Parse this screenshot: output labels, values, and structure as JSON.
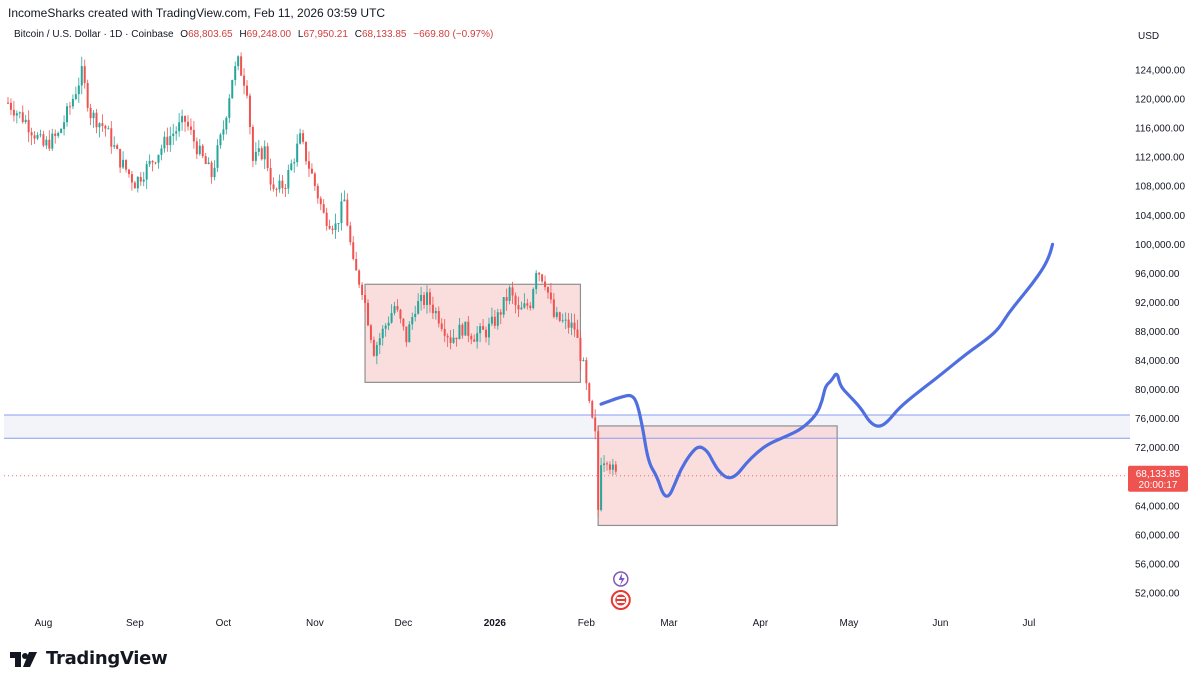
{
  "header": {
    "credit": "IncomeSharks created with TradingView.com, Feb 11, 2026 03:59 UTC",
    "symbol": "Bitcoin / U.S. Dollar · 1D · Coinbase",
    "o_label": "O",
    "o_value": "68,803.65",
    "h_label": "H",
    "h_value": "69,248.00",
    "l_label": "L",
    "l_value": "67,950.21",
    "c_label": "C",
    "c_value": "68,133.85",
    "change": "−669.80 (−0.97%)",
    "currency": "USD"
  },
  "brand": {
    "name": "TradingView"
  },
  "price_badge": {
    "price": "68,133.85",
    "countdown": "20:00:17"
  },
  "colors": {
    "up": "#26a69a",
    "down": "#ef5350",
    "projection": "#4f6fe0",
    "range_fill": "#f8d3d3",
    "range_stroke": "#8f8f8f",
    "hline": "#8a9cf0",
    "band_fill": "#f3f4fa",
    "badge": "#ef5350"
  },
  "chart_data": {
    "type": "candlestick",
    "title": "Bitcoin / U.S. Dollar · 1D · Coinbase",
    "ylabel": "USD",
    "ylim": [
      48000,
      128000
    ],
    "y_ticks": [
      "124,000.00",
      "120,000.00",
      "116,000.00",
      "112,000.00",
      "108,000.00",
      "104,000.00",
      "100,000.00",
      "96,000.00",
      "92,000.00",
      "88,000.00",
      "84,000.00",
      "80,000.00",
      "76,000.00",
      "72,000.00",
      "64,000.00",
      "60,000.00",
      "56,000.00",
      "52,000.00"
    ],
    "y_tick_values": [
      124000,
      120000,
      116000,
      112000,
      108000,
      104000,
      100000,
      96000,
      92000,
      88000,
      84000,
      80000,
      76000,
      72000,
      64000,
      60000,
      56000,
      52000
    ],
    "x_ticks": [
      "Aug",
      "Sep",
      "Oct",
      "Nov",
      "Dec",
      "2026",
      "Feb",
      "Mar",
      "Apr",
      "May",
      "Jun",
      "Jul"
    ],
    "x_tick_dates": [
      "2025-08-01",
      "2025-09-01",
      "2025-10-01",
      "2025-11-01",
      "2025-12-01",
      "2026-01-01",
      "2026-02-01",
      "2026-03-01",
      "2026-04-01",
      "2026-05-01",
      "2026-06-01",
      "2026-07-01"
    ],
    "price_path": [
      [
        "2025-07-20",
        119500
      ],
      [
        "2025-07-26",
        117000
      ],
      [
        "2025-08-01",
        113500
      ],
      [
        "2025-08-06",
        115000
      ],
      [
        "2025-08-10",
        119000
      ],
      [
        "2025-08-14",
        123500
      ],
      [
        "2025-08-17",
        118000
      ],
      [
        "2025-08-22",
        116000
      ],
      [
        "2025-08-27",
        111500
      ],
      [
        "2025-09-01",
        108500
      ],
      [
        "2025-09-06",
        111000
      ],
      [
        "2025-09-12",
        114500
      ],
      [
        "2025-09-18",
        117000
      ],
      [
        "2025-09-23",
        112500
      ],
      [
        "2025-09-27",
        109500
      ],
      [
        "2025-10-01",
        116000
      ],
      [
        "2025-10-04",
        123000
      ],
      [
        "2025-10-06",
        125000
      ],
      [
        "2025-10-09",
        121500
      ],
      [
        "2025-10-11",
        111500
      ],
      [
        "2025-10-15",
        113000
      ],
      [
        "2025-10-18",
        107000
      ],
      [
        "2025-10-22",
        108500
      ],
      [
        "2025-10-27",
        114500
      ],
      [
        "2025-10-31",
        109500
      ],
      [
        "2025-11-04",
        104000
      ],
      [
        "2025-11-08",
        102500
      ],
      [
        "2025-11-11",
        106000
      ],
      [
        "2025-11-14",
        97000
      ],
      [
        "2025-11-17",
        94000
      ],
      [
        "2025-11-21",
        85500
      ],
      [
        "2025-11-24",
        88000
      ],
      [
        "2025-11-28",
        91500
      ],
      [
        "2025-12-02",
        87000
      ],
      [
        "2025-12-05",
        91500
      ],
      [
        "2025-12-09",
        92500
      ],
      [
        "2025-12-13",
        90000
      ],
      [
        "2025-12-17",
        87000
      ],
      [
        "2025-12-21",
        88500
      ],
      [
        "2025-12-25",
        87500
      ],
      [
        "2025-12-29",
        88000
      ],
      [
        "2026-01-02",
        90000
      ],
      [
        "2026-01-06",
        93500
      ],
      [
        "2026-01-09",
        90500
      ],
      [
        "2026-01-13",
        92000
      ],
      [
        "2026-01-15",
        96800
      ],
      [
        "2026-01-18",
        95000
      ],
      [
        "2026-01-21",
        90000
      ],
      [
        "2026-01-25",
        89000
      ],
      [
        "2026-01-28",
        88500
      ],
      [
        "2026-01-31",
        83000
      ],
      [
        "2026-02-02",
        77500
      ],
      [
        "2026-02-04",
        73500
      ],
      [
        "2026-02-05",
        63500
      ],
      [
        "2026-02-06",
        70500
      ],
      [
        "2026-02-08",
        70800
      ],
      [
        "2026-02-10",
        68800
      ],
      [
        "2026-02-11",
        68134
      ]
    ],
    "zones": [
      {
        "x0": "2025-11-18",
        "x1": "2026-01-30",
        "y0": 81000,
        "y1": 94500
      },
      {
        "x0": "2026-02-05",
        "x1": "2026-04-27",
        "y0": 61300,
        "y1": 75000
      }
    ],
    "horizontal_lines": [
      76500,
      73300
    ],
    "projection_path": [
      [
        "2026-02-06",
        78000
      ],
      [
        "2026-02-10",
        78600
      ],
      [
        "2026-02-13",
        79000
      ],
      [
        "2026-02-16",
        79300
      ],
      [
        "2026-02-18",
        78500
      ],
      [
        "2026-02-20",
        75000
      ],
      [
        "2026-02-22",
        70000
      ],
      [
        "2026-02-25",
        68000
      ],
      [
        "2026-02-27",
        65500
      ],
      [
        "2026-03-01",
        65200
      ],
      [
        "2026-03-03",
        67000
      ],
      [
        "2026-03-05",
        69000
      ],
      [
        "2026-03-08",
        71000
      ],
      [
        "2026-03-11",
        72300
      ],
      [
        "2026-03-14",
        71600
      ],
      [
        "2026-03-16",
        70000
      ],
      [
        "2026-03-18",
        68700
      ],
      [
        "2026-03-21",
        67700
      ],
      [
        "2026-03-24",
        68200
      ],
      [
        "2026-03-27",
        69800
      ],
      [
        "2026-03-31",
        71400
      ],
      [
        "2026-04-04",
        72600
      ],
      [
        "2026-04-10",
        73600
      ],
      [
        "2026-04-15",
        74600
      ],
      [
        "2026-04-20",
        76500
      ],
      [
        "2026-04-22",
        78500
      ],
      [
        "2026-04-23",
        80500
      ],
      [
        "2026-04-25",
        81200
      ],
      [
        "2026-04-27",
        82500
      ],
      [
        "2026-04-28",
        80500
      ],
      [
        "2026-05-01",
        79200
      ],
      [
        "2026-05-05",
        77500
      ],
      [
        "2026-05-08",
        75500
      ],
      [
        "2026-05-11",
        74800
      ],
      [
        "2026-05-14",
        75500
      ],
      [
        "2026-05-18",
        77500
      ],
      [
        "2026-05-24",
        79500
      ],
      [
        "2026-06-01",
        82000
      ],
      [
        "2026-06-10",
        85000
      ],
      [
        "2026-06-17",
        87000
      ],
      [
        "2026-06-21",
        88500
      ],
      [
        "2026-06-24",
        90500
      ],
      [
        "2026-06-28",
        92500
      ],
      [
        "2026-07-02",
        94500
      ],
      [
        "2026-07-06",
        96800
      ],
      [
        "2026-07-08",
        98500
      ],
      [
        "2026-07-09",
        100000
      ]
    ],
    "last_price": 68133.85
  }
}
